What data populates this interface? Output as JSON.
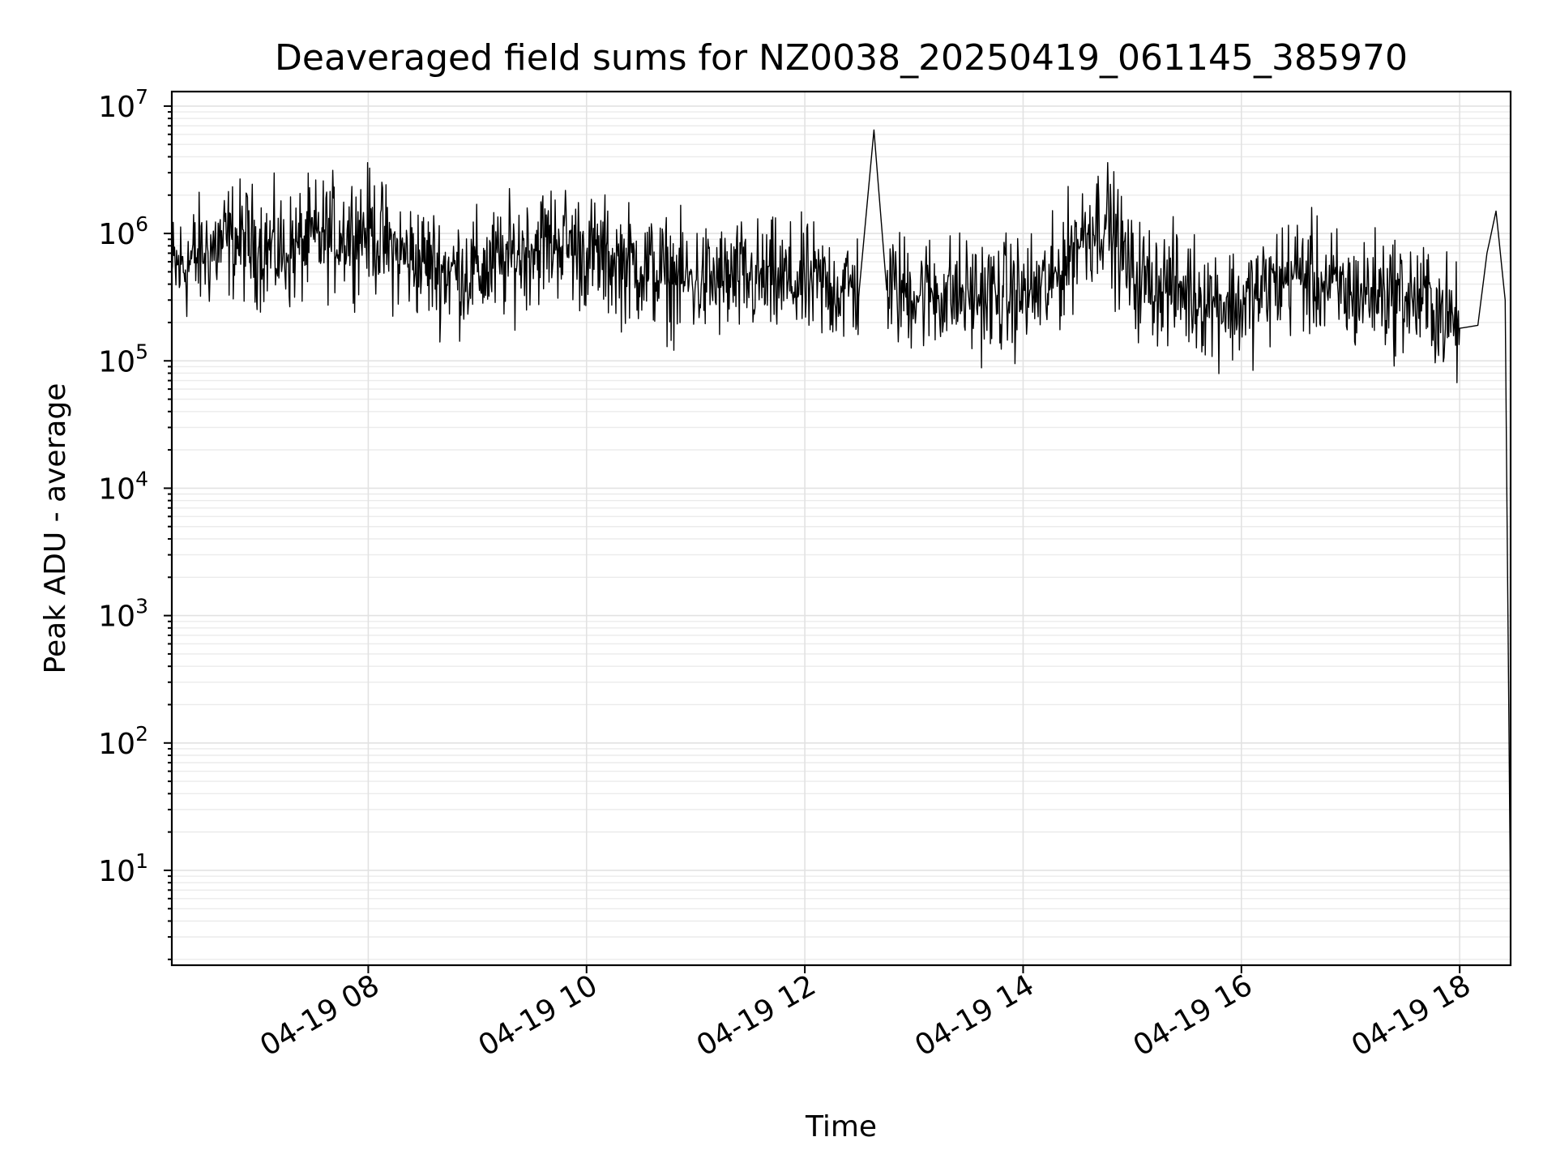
{
  "chart_data": {
    "type": "line",
    "title": "Deaveraged field sums for NZ0038_20250419_061145_385970",
    "xlabel": "Time",
    "ylabel": "Peak ADU - average",
    "yscale": "log",
    "xlim": [
      "04-19 06:12",
      "04-19 18:28"
    ],
    "ylim": [
      1.8,
      13000000
    ],
    "x_ticks": [
      "04-19 08",
      "04-19 10",
      "04-19 12",
      "04-19 14",
      "04-19 16",
      "04-19 18"
    ],
    "x_tick_hours": [
      8,
      10,
      12,
      14,
      16,
      18
    ],
    "y_ticks": [
      {
        "base": "10",
        "exp": "1",
        "value": 10
      },
      {
        "base": "10",
        "exp": "2",
        "value": 100
      },
      {
        "base": "10",
        "exp": "3",
        "value": 1000
      },
      {
        "base": "10",
        "exp": "4",
        "value": 10000
      },
      {
        "base": "10",
        "exp": "5",
        "value": 100000
      },
      {
        "base": "10",
        "exp": "6",
        "value": 1000000
      },
      {
        "base": "10",
        "exp": "7",
        "value": 10000000
      }
    ],
    "grid": true,
    "series": [
      {
        "color": "#000000",
        "x": [
          "06:12",
          "06:30",
          "06:45",
          "07:00",
          "07:15",
          "07:30",
          "07:45",
          "08:00",
          "08:15",
          "08:30",
          "08:45",
          "09:00",
          "09:15",
          "09:30",
          "09:45",
          "10:00",
          "10:15",
          "10:30",
          "10:45",
          "11:00",
          "11:15",
          "11:30",
          "11:45",
          "12:00",
          "12:15",
          "12:30",
          "12:38",
          "12:45",
          "13:00",
          "13:15",
          "13:30",
          "13:45",
          "14:00",
          "14:15",
          "14:30",
          "14:45",
          "15:00",
          "15:15",
          "15:30",
          "15:45",
          "16:00",
          "16:15",
          "16:30",
          "16:45",
          "17:00",
          "17:15",
          "17:30",
          "17:45",
          "18:00",
          "18:10",
          "18:15",
          "18:20",
          "18:25",
          "18:28"
        ],
        "y": [
          500000,
          700000,
          900000,
          800000,
          700000,
          900000,
          1000000,
          1100000,
          700000,
          600000,
          500000,
          500000,
          600000,
          800000,
          900000,
          700000,
          600000,
          550000,
          450000,
          420000,
          420000,
          430000,
          420000,
          400000,
          380000,
          370000,
          6500000,
          360000,
          350000,
          340000,
          330000,
          320000,
          330000,
          380000,
          900000,
          1400000,
          450000,
          400000,
          350000,
          300000,
          270000,
          380000,
          500000,
          400000,
          330000,
          360000,
          320000,
          280000,
          180000,
          190000,
          700000,
          1500000,
          300000,
          4
        ]
      }
    ]
  }
}
